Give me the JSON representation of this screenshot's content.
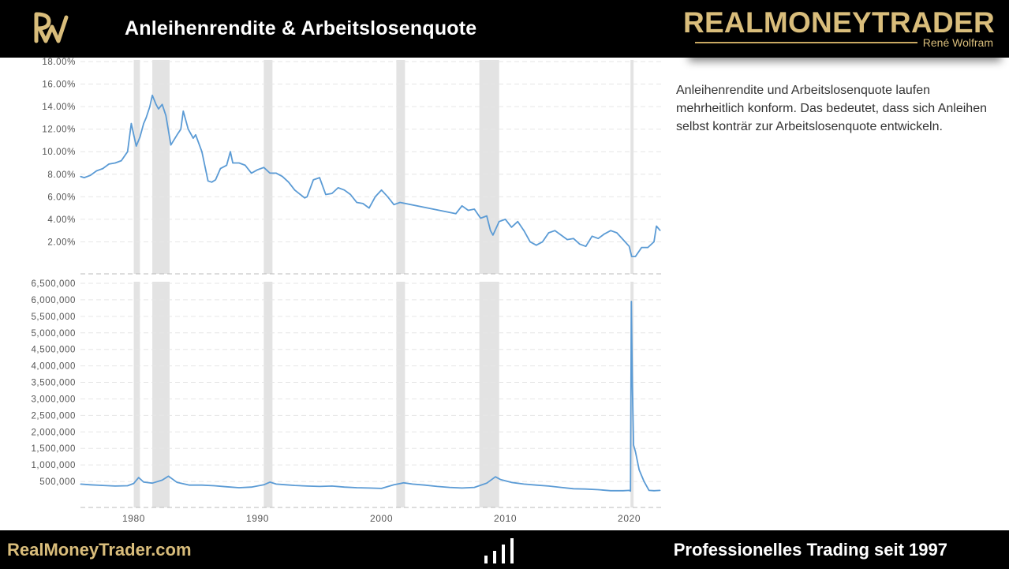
{
  "header": {
    "title": "Anleihenrendite & Arbeitslosenquote",
    "brand_name": "REALMONEYTRADER",
    "brand_sub": "René Wolfram"
  },
  "description": "Anleihenrendite und Arbeitslosenquote laufen mehrheitlich konform. Das bedeutet, dass sich Anleihen selbst konträr zur Arbeitslosenquote entwickeln.",
  "footer": {
    "left": "RealMoneyTrader.com",
    "right": "Professionelles Trading seit 1997"
  },
  "colors": {
    "line": "#5b9bd5",
    "recession": "#e3e3e3",
    "gold": "#d9bd7b",
    "header_bg": "#000000"
  },
  "chart_data": [
    {
      "type": "line",
      "title": "",
      "ylim": [
        0,
        18
      ],
      "yticks": [
        "2.00%",
        "4.00%",
        "6.00%",
        "8.00%",
        "10.00%",
        "12.00%",
        "14.00%",
        "16.00%",
        "18.00%"
      ],
      "xlim": [
        1975.7,
        2022.7
      ],
      "recessions": [
        [
          1980.0,
          1980.5
        ],
        [
          1981.5,
          1982.9
        ],
        [
          1990.5,
          1991.2
        ],
        [
          2001.2,
          2001.9
        ],
        [
          2007.9,
          2009.5
        ],
        [
          2020.1,
          2020.35
        ]
      ],
      "series": [
        {
          "x": [
            1975.7,
            1976.0,
            1976.5,
            1977.0,
            1977.5,
            1978.0,
            1978.5,
            1979.0,
            1979.5,
            1979.8,
            1980.0,
            1980.2,
            1980.5,
            1980.8,
            1981.0,
            1981.3,
            1981.5,
            1981.8,
            1982.0,
            1982.3,
            1982.6,
            1983.0,
            1983.5,
            1983.8,
            1984.0,
            1984.4,
            1984.8,
            1985.0,
            1985.5,
            1986.0,
            1986.3,
            1986.6,
            1987.0,
            1987.5,
            1987.8,
            1988.0,
            1988.5,
            1989.0,
            1989.5,
            1990.0,
            1990.5,
            1991.0,
            1991.5,
            1992.0,
            1992.5,
            1993.0,
            1993.8,
            1994.0,
            1994.5,
            1995.0,
            1995.5,
            1996.0,
            1996.5,
            1997.0,
            1997.5,
            1998.0,
            1998.5,
            1999.0,
            1999.5,
            2000.0,
            2000.5,
            2001.0,
            2001.5,
            2006.0,
            2006.5,
            2007.0,
            2007.5,
            2008.0,
            2008.5,
            2008.8,
            2009.0,
            2009.5,
            2010.0,
            2010.5,
            2011.0,
            2011.5,
            2012.0,
            2012.5,
            2013.0,
            2013.5,
            2014.0,
            2014.5,
            2015.0,
            2015.5,
            2016.0,
            2016.5,
            2017.0,
            2017.5,
            2018.0,
            2018.5,
            2019.0,
            2019.5,
            2020.0,
            2020.2,
            2020.5,
            2021.0,
            2021.5,
            2022.0,
            2022.2,
            2022.5
          ],
          "y": [
            7.8,
            7.7,
            7.9,
            8.3,
            8.5,
            8.9,
            9.0,
            9.2,
            10.0,
            12.5,
            11.5,
            10.5,
            11.3,
            12.5,
            13.0,
            14.0,
            15.0,
            14.2,
            13.8,
            14.2,
            13.2,
            10.6,
            11.5,
            12.0,
            13.6,
            12.0,
            11.2,
            11.5,
            10.0,
            7.4,
            7.3,
            7.5,
            8.5,
            8.8,
            10.0,
            9.0,
            9.0,
            8.8,
            8.1,
            8.4,
            8.6,
            8.1,
            8.1,
            7.8,
            7.3,
            6.6,
            5.9,
            6.0,
            7.5,
            7.7,
            6.2,
            6.3,
            6.8,
            6.6,
            6.2,
            5.5,
            5.4,
            5.0,
            6.0,
            6.6,
            6.0,
            5.3,
            5.5,
            4.5,
            5.2,
            4.8,
            4.9,
            4.1,
            4.3,
            3.0,
            2.6,
            3.8,
            4.0,
            3.3,
            3.8,
            3.0,
            2.0,
            1.7,
            2.0,
            2.8,
            3.0,
            2.6,
            2.2,
            2.3,
            1.8,
            1.6,
            2.5,
            2.3,
            2.7,
            3.0,
            2.8,
            2.2,
            1.6,
            0.7,
            0.7,
            1.5,
            1.5,
            2.0,
            3.4,
            3.0
          ]
        }
      ]
    },
    {
      "type": "line",
      "title": "",
      "ylim": [
        0,
        6500000
      ],
      "yticks": [
        "500,000",
        "1,000,000",
        "1,500,000",
        "2,000,000",
        "2,500,000",
        "3,000,000",
        "3,500,000",
        "4,000,000",
        "4,500,000",
        "5,000,000",
        "5,500,000",
        "6,000,000",
        "6,500,000"
      ],
      "xlim": [
        1975.7,
        2022.7
      ],
      "xticks": [
        "1980",
        "1990",
        "2000",
        "2010",
        "2020"
      ],
      "recessions": [
        [
          1980.0,
          1980.5
        ],
        [
          1981.5,
          1982.9
        ],
        [
          1990.5,
          1991.2
        ],
        [
          2001.2,
          2001.9
        ],
        [
          2007.9,
          2009.5
        ],
        [
          2020.1,
          2020.35
        ]
      ],
      "series": [
        {
          "x": [
            1975.7,
            1976.5,
            1977.5,
            1978.5,
            1979.5,
            1980.0,
            1980.4,
            1980.8,
            1981.5,
            1982.3,
            1982.8,
            1983.5,
            1984.5,
            1985.5,
            1986.5,
            1987.5,
            1988.5,
            1989.5,
            1990.5,
            1991.0,
            1991.5,
            1992.3,
            1993.0,
            1994.0,
            1995.0,
            1996.0,
            1997.0,
            1998.0,
            1999.0,
            2000.0,
            2001.0,
            2001.8,
            2002.5,
            2003.5,
            2004.5,
            2005.5,
            2006.5,
            2007.5,
            2008.5,
            2009.2,
            2009.6,
            2010.5,
            2011.5,
            2012.5,
            2013.5,
            2014.5,
            2015.5,
            2016.5,
            2017.5,
            2018.5,
            2019.5,
            2020.0,
            2020.1,
            2020.17,
            2020.25,
            2020.35,
            2020.5,
            2020.8,
            2021.2,
            2021.6,
            2022.0,
            2022.5
          ],
          "y": [
            420000,
            400000,
            380000,
            360000,
            370000,
            440000,
            620000,
            480000,
            450000,
            540000,
            660000,
            470000,
            390000,
            390000,
            370000,
            340000,
            310000,
            330000,
            400000,
            480000,
            420000,
            400000,
            380000,
            360000,
            350000,
            360000,
            330000,
            310000,
            300000,
            290000,
            400000,
            460000,
            420000,
            390000,
            350000,
            320000,
            300000,
            320000,
            450000,
            640000,
            560000,
            470000,
            420000,
            390000,
            360000,
            320000,
            280000,
            270000,
            250000,
            220000,
            220000,
            230000,
            210000,
            5950000,
            3500000,
            1600000,
            1400000,
            850000,
            500000,
            230000,
            220000,
            230000
          ]
        }
      ]
    }
  ]
}
